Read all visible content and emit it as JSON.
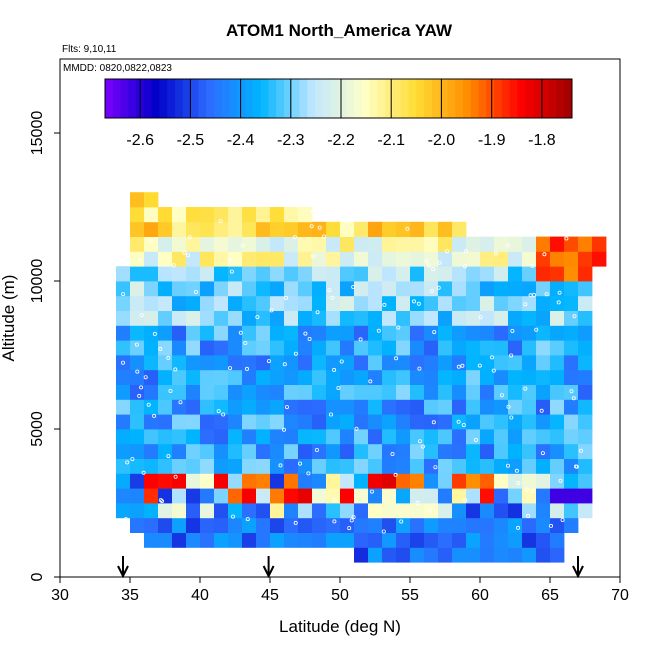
{
  "chart_data": {
    "type": "heatmap",
    "title": "ATOM1 North_America YAW",
    "flights_label": "Flts: 9,10,11",
    "dates_label": "MMDD: 0820,0822,0823",
    "xlabel": "Latitude (deg N)",
    "ylabel": "Altitude (m)",
    "xlim": [
      30,
      70
    ],
    "ylim": [
      0,
      17500
    ],
    "x_ticks": [
      "30",
      "35",
      "40",
      "45",
      "50",
      "55",
      "60",
      "65",
      "70"
    ],
    "y_ticks": [
      "0",
      "5000",
      "10000",
      "15000"
    ],
    "colorbar": {
      "ticks": [
        "-2.6",
        "-2.5",
        "-2.4",
        "-2.3",
        "-2.2",
        "-2.1",
        "-2.0",
        "-1.9",
        "-1.8"
      ],
      "range": [
        -2.67,
        -1.74
      ],
      "colors": [
        "#7b00ff",
        "#0000c8",
        "#2c6cff",
        "#00b4ff",
        "#bfe6ff",
        "#ffffc8",
        "#ffdc33",
        "#ff8c00",
        "#ff0000",
        "#a00000"
      ]
    },
    "profile_markers_lat": [
      34.5,
      44.9,
      67.0
    ],
    "grid": false,
    "bin_lat_deg": 1,
    "bin_alt_m": 500,
    "cells_note": "gridded mean YAW per 1 deg latitude x 500 m altitude bin"
  }
}
